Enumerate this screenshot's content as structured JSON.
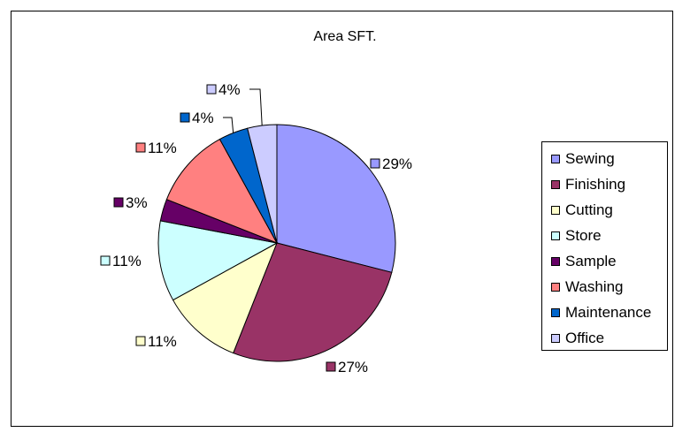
{
  "chart_data": {
    "type": "pie",
    "title": "Area SFT.",
    "categories": [
      "Sewing",
      "Finishing",
      "Cutting",
      "Store",
      "Sample",
      "Washing",
      "Maintenance",
      "Office"
    ],
    "values": [
      29,
      27,
      11,
      11,
      3,
      11,
      4,
      4
    ],
    "labels": [
      "29%",
      "27%",
      "11%",
      "11%",
      "3%",
      "11%",
      "4%",
      "4%"
    ],
    "colors": [
      "#9999FF",
      "#993366",
      "#FFFFCC",
      "#CCFFFF",
      "#660066",
      "#FF8080",
      "#0066CC",
      "#CCCCFF"
    ],
    "legend_position": "right"
  }
}
